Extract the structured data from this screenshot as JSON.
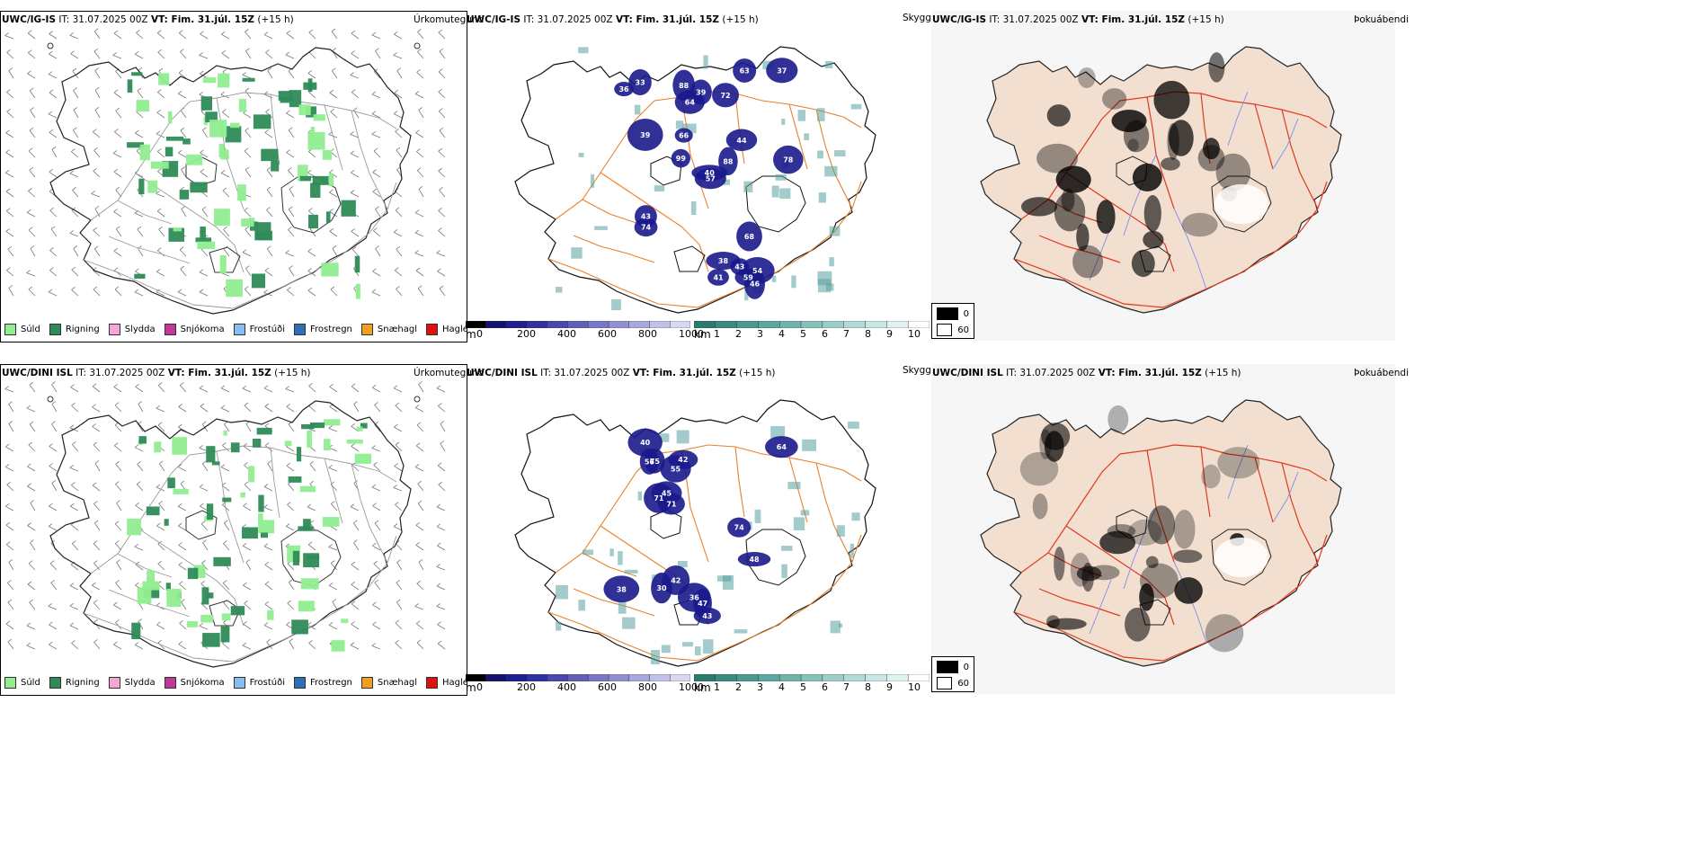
{
  "rows": [
    {
      "model": "UWC/IG-IS",
      "it_label": "IT: 31.07.2025 00Z",
      "vt_label": "VT: Fim. 31.júl. 15Z",
      "lead": "(+15 h)",
      "panels": [
        "Úrkomutegund",
        "Skyggni",
        "Þokuábendi"
      ],
      "cloud_labels": [
        "44",
        "39",
        "38",
        "72",
        "59",
        "64",
        "57",
        "63",
        "74",
        "88",
        "54",
        "37",
        "43",
        "36",
        "41",
        "43",
        "78",
        "99",
        "46",
        "39",
        "33",
        "40",
        "66",
        "88",
        "68"
      ]
    },
    {
      "model": "UWC/DINI ISL",
      "it_label": "IT: 31.07.2025 00Z",
      "vt_label": "VT: Fim. 31.júl. 15Z",
      "lead": "(+15 h)",
      "panels": [
        "Úrkomutegund",
        "Skyggni",
        "Þokuábendi"
      ],
      "cloud_labels": [
        "56",
        "42",
        "45",
        "40",
        "30",
        "43",
        "36",
        "75",
        "48",
        "55",
        "64",
        "38",
        "71",
        "74",
        "42",
        "47",
        "71"
      ]
    }
  ],
  "precip_legend": [
    {
      "label": "Súld",
      "color": "#90ee90"
    },
    {
      "label": "Rigning",
      "color": "#2e8b57"
    },
    {
      "label": "Slydda",
      "color": "#f4a6d7"
    },
    {
      "label": "Snjókoma",
      "color": "#c0399a"
    },
    {
      "label": "Frostúði",
      "color": "#87bdf0"
    },
    {
      "label": "Frostregn",
      "color": "#2f6fb8"
    },
    {
      "label": "Snæhagl",
      "color": "#f0a020"
    },
    {
      "label": "Haglél",
      "color": "#e01010"
    }
  ],
  "cbar_m": {
    "unit": "m",
    "ticks": [
      "0",
      "200",
      "400",
      "600",
      "800",
      "1000"
    ]
  },
  "cbar_km": {
    "unit": "km",
    "ticks": [
      "1",
      "2",
      "3",
      "4",
      "5",
      "6",
      "7",
      "8",
      "9",
      "10"
    ]
  },
  "fog_legend": [
    "0",
    "60"
  ],
  "colors": {
    "land_fog": "#f2dfd0",
    "roads_orange": "#e8802a",
    "roads_red": "#e03a1e",
    "rain_light": "#90ee90",
    "rain_dark": "#2e8b57",
    "cloud_dark": "#1a1a8c",
    "cloud_teal": "#5aa0a0",
    "rivers": "#7a8ee8"
  }
}
